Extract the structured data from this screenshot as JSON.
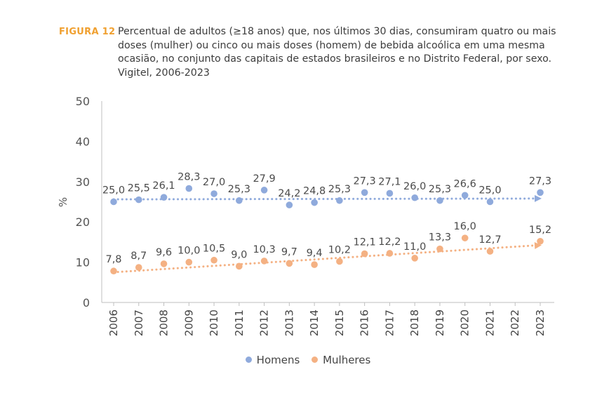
{
  "figure": {
    "label": "FIGURA 12",
    "caption": "Percentual de adultos (≥18 anos) que, nos últimos 30 dias, consumiram quatro ou mais doses (mulher) ou cinco ou mais doses (homem) de bebida alcoólica em uma mesma ocasião, no conjunto das capitais de estados brasileiros e no Distrito Federal, por sexo. Vigitel, 2006-2023",
    "label_color": "#F0A030"
  },
  "chart_data": {
    "type": "scatter",
    "ylabel": "%",
    "xlabel": "",
    "ylim": [
      0,
      50
    ],
    "yticks": [
      0,
      10,
      20,
      30,
      40,
      50
    ],
    "categories": [
      "2006",
      "2007",
      "2008",
      "2009",
      "2010",
      "2011",
      "2012",
      "2013",
      "2014",
      "2015",
      "2016",
      "2017",
      "2018",
      "2019",
      "2020",
      "2021",
      "2022",
      "2023"
    ],
    "series": [
      {
        "name": "Homens",
        "color": "#8FAADC",
        "values": [
          25.0,
          25.5,
          26.1,
          28.3,
          27.0,
          25.3,
          27.9,
          24.2,
          24.8,
          25.3,
          27.3,
          27.1,
          26.0,
          25.3,
          26.6,
          25.0,
          null,
          27.3
        ],
        "labels": [
          "25,0",
          "25,5",
          "26,1",
          "28,3",
          "27,0",
          "25,3",
          "27,9",
          "24,2",
          "24,8",
          "25,3",
          "27,3",
          "27,1",
          "26,0",
          "25,3",
          "26,6",
          "25,0",
          "",
          "27,3"
        ],
        "trend": [
          25.6,
          25.8
        ]
      },
      {
        "name": "Mulheres",
        "color": "#F4B183",
        "values": [
          7.8,
          8.7,
          9.6,
          10.0,
          10.5,
          9.0,
          10.3,
          9.7,
          9.4,
          10.2,
          12.1,
          12.2,
          11.0,
          13.3,
          16.0,
          12.7,
          null,
          15.2
        ],
        "labels": [
          "7,8",
          "8,7",
          "9,6",
          "10,0",
          "10,5",
          "9,0",
          "10,3",
          "9,7",
          "9,4",
          "10,2",
          "12,1",
          "12,2",
          "11,0",
          "13,3",
          "16,0",
          "12,7",
          "",
          "15,2"
        ],
        "trend": [
          7.5,
          14.2
        ]
      }
    ],
    "grid": false,
    "legend_position": "bottom"
  }
}
